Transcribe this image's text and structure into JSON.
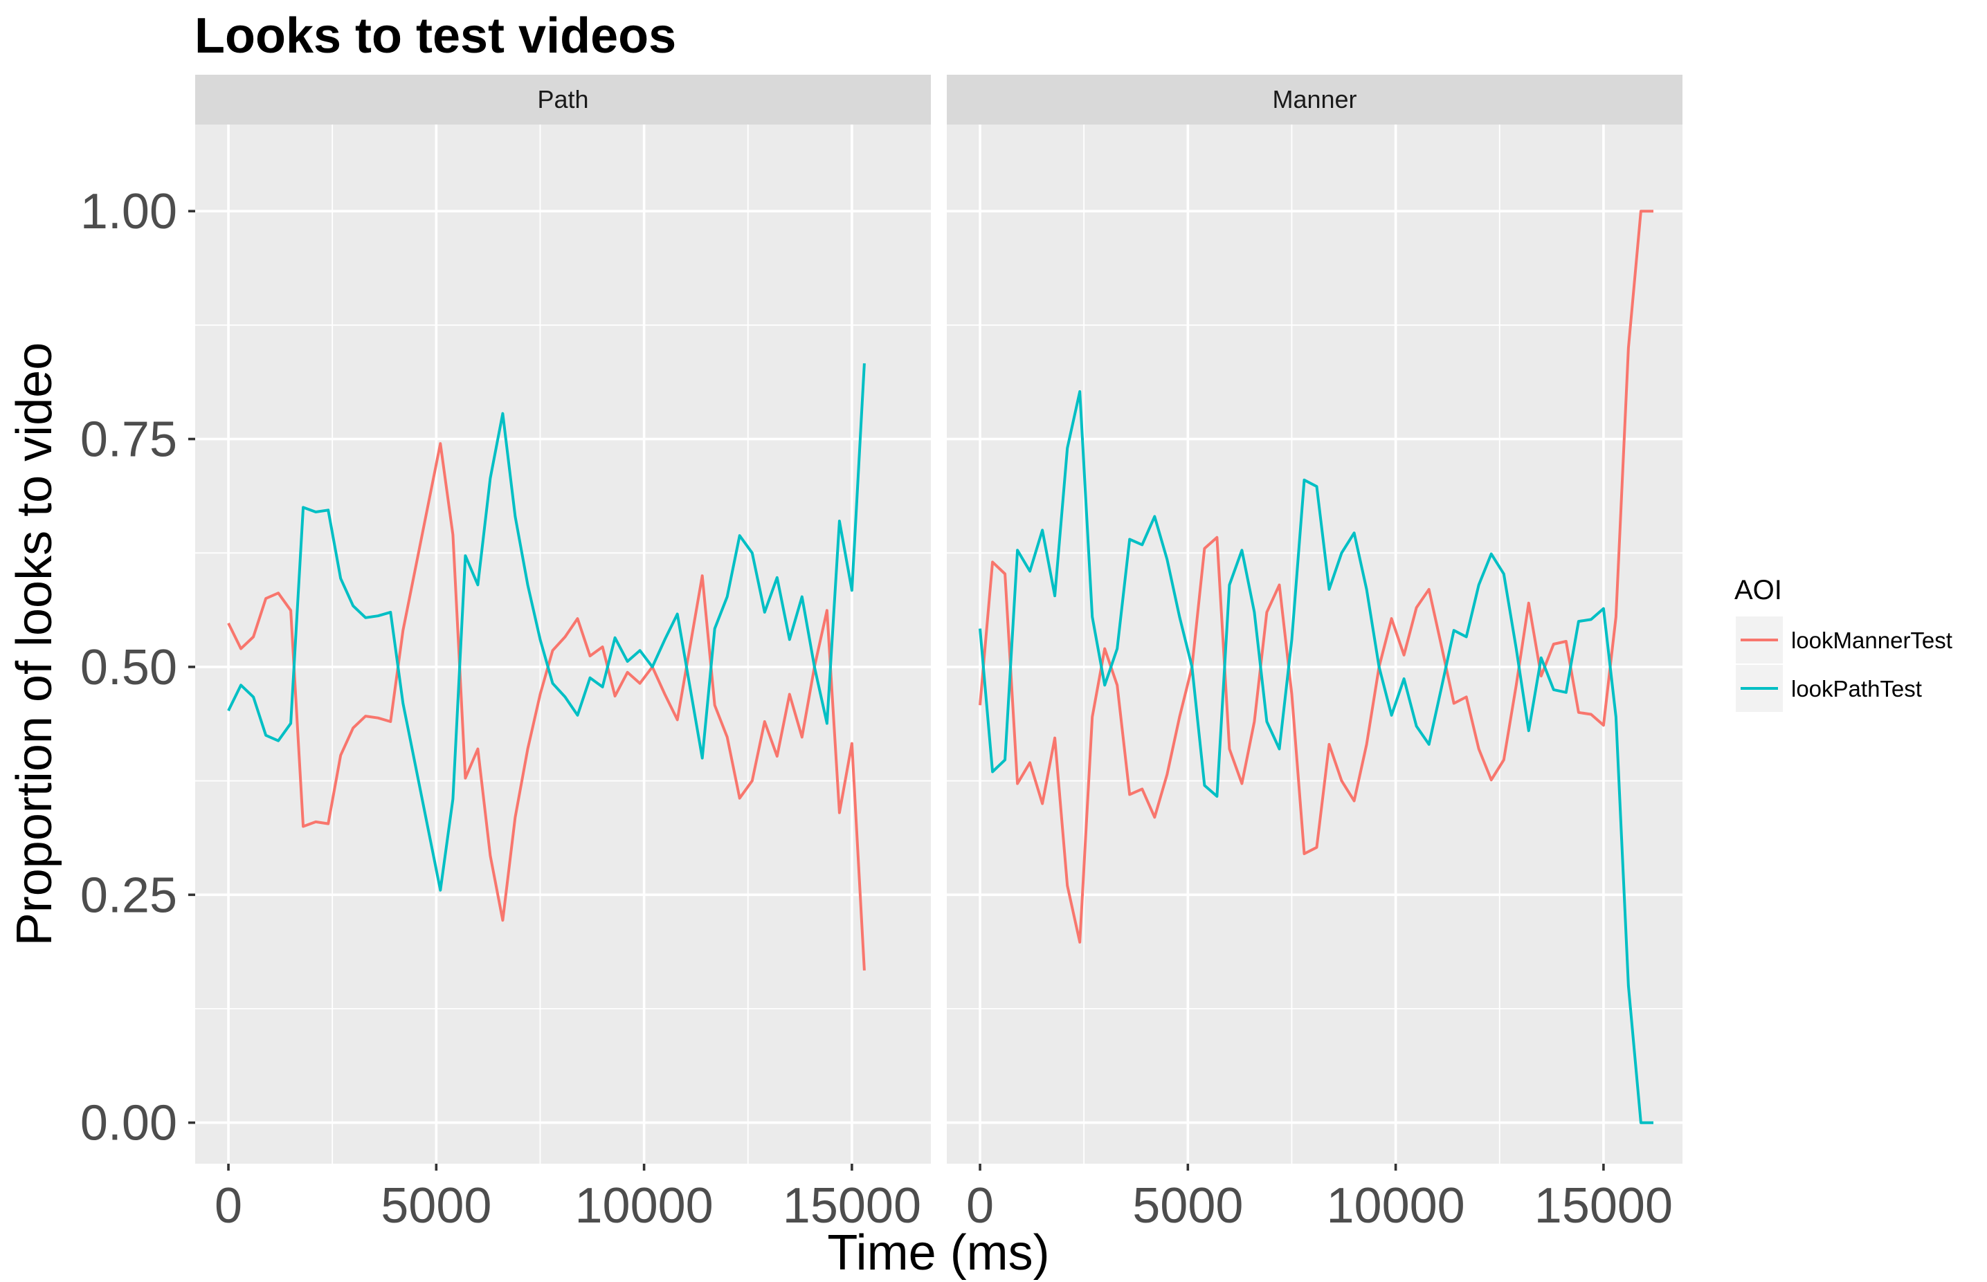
{
  "chart_data": {
    "type": "line",
    "title": "Looks to test videos",
    "xlabel": "Time (ms)",
    "ylabel": "Proportion of looks to video",
    "xlim": [
      -800,
      16900
    ],
    "ylim": [
      -0.045,
      1.095
    ],
    "x_ticks": [
      0,
      5000,
      10000,
      15000
    ],
    "x_tick_labels": [
      "0",
      "5000",
      "10000",
      "15000"
    ],
    "y_ticks": [
      0,
      0.25,
      0.5,
      0.75,
      1.0
    ],
    "y_tick_labels": [
      "0.00",
      "0.25",
      "0.50",
      "0.75",
      "1.00"
    ],
    "grid": true,
    "legend": {
      "title": "AOI",
      "position": "right",
      "entries": [
        {
          "name": "lookMannerTest",
          "color": "#F8766D"
        },
        {
          "name": "lookPathTest",
          "color": "#00BFC4"
        }
      ]
    },
    "panels": [
      {
        "strip": "Path",
        "series": [
          {
            "name": "lookMannerTest",
            "color": "#F8766D",
            "x": [
              0,
              300,
              600,
              900,
              1200,
              1500,
              1800,
              2100,
              2400,
              2700,
              3000,
              3300,
              3600,
              3900,
              4200,
              5100,
              5400,
              5700,
              6000,
              6300,
              6600,
              6900,
              7200,
              7500,
              7800,
              8100,
              8400,
              8700,
              9000,
              9300,
              9600,
              9900,
              10200,
              10500,
              10800,
              11400,
              11700,
              12000,
              12300,
              12600,
              12900,
              13200,
              13500,
              13800,
              14100,
              14400,
              14700,
              15000,
              15300
            ],
            "y": [
              0.548,
              0.52,
              0.533,
              0.575,
              0.581,
              0.562,
              0.325,
              0.33,
              0.328,
              0.403,
              0.433,
              0.446,
              0.444,
              0.44,
              0.54,
              0.745,
              0.645,
              0.378,
              0.41,
              0.293,
              0.222,
              0.335,
              0.41,
              0.47,
              0.518,
              0.533,
              0.553,
              0.512,
              0.522,
              0.468,
              0.494,
              0.482,
              0.5,
              0.47,
              0.442,
              0.6,
              0.458,
              0.423,
              0.356,
              0.375,
              0.44,
              0.402,
              0.47,
              0.423,
              0.5,
              0.562,
              0.34,
              0.416,
              0.167
            ]
          },
          {
            "name": "lookPathTest",
            "color": "#00BFC4",
            "x": [
              0,
              300,
              600,
              900,
              1200,
              1500,
              1800,
              2100,
              2400,
              2700,
              3000,
              3300,
              3600,
              3900,
              4200,
              5100,
              5400,
              5700,
              6000,
              6300,
              6600,
              6900,
              7200,
              7500,
              7800,
              8100,
              8400,
              8700,
              9000,
              9300,
              9600,
              9900,
              10200,
              10500,
              10800,
              11400,
              11700,
              12000,
              12300,
              12600,
              12900,
              13200,
              13500,
              13800,
              14100,
              14400,
              14700,
              15000,
              15300
            ],
            "y": [
              0.452,
              0.48,
              0.467,
              0.425,
              0.419,
              0.438,
              0.675,
              0.67,
              0.672,
              0.597,
              0.567,
              0.554,
              0.556,
              0.56,
              0.46,
              0.255,
              0.355,
              0.622,
              0.59,
              0.707,
              0.778,
              0.665,
              0.59,
              0.53,
              0.482,
              0.467,
              0.447,
              0.488,
              0.478,
              0.532,
              0.506,
              0.518,
              0.5,
              0.53,
              0.558,
              0.4,
              0.542,
              0.577,
              0.644,
              0.625,
              0.56,
              0.598,
              0.53,
              0.577,
              0.5,
              0.438,
              0.66,
              0.584,
              0.833
            ]
          }
        ]
      },
      {
        "strip": "Manner",
        "series": [
          {
            "name": "lookMannerTest",
            "color": "#F8766D",
            "x": [
              0,
              300,
              600,
              900,
              1200,
              1500,
              1800,
              2100,
              2400,
              2700,
              3000,
              3300,
              3600,
              3900,
              4200,
              4500,
              4800,
              5100,
              5400,
              5700,
              6000,
              6300,
              6600,
              6900,
              7200,
              7500,
              7800,
              8100,
              8400,
              8700,
              9000,
              9300,
              9600,
              9900,
              10200,
              10500,
              10800,
              11100,
              11400,
              11700,
              12000,
              12300,
              12600,
              12900,
              13200,
              13500,
              13800,
              14100,
              14400,
              14700,
              15000,
              15300,
              15600,
              15900,
              16200
            ],
            "y": [
              0.458,
              0.615,
              0.602,
              0.372,
              0.395,
              0.35,
              0.422,
              0.26,
              0.198,
              0.445,
              0.52,
              0.48,
              0.36,
              0.366,
              0.335,
              0.382,
              0.445,
              0.5,
              0.63,
              0.642,
              0.41,
              0.372,
              0.44,
              0.56,
              0.59,
              0.47,
              0.295,
              0.302,
              0.415,
              0.375,
              0.353,
              0.415,
              0.5,
              0.553,
              0.513,
              0.565,
              0.585,
              0.523,
              0.46,
              0.467,
              0.41,
              0.376,
              0.398,
              0.48,
              0.57,
              0.49,
              0.525,
              0.528,
              0.45,
              0.448,
              0.436,
              0.555,
              0.85,
              1.0,
              1.0
            ]
          },
          {
            "name": "lookPathTest",
            "color": "#00BFC4",
            "x": [
              0,
              300,
              600,
              900,
              1200,
              1500,
              1800,
              2100,
              2400,
              2700,
              3000,
              3300,
              3600,
              3900,
              4200,
              4500,
              4800,
              5100,
              5400,
              5700,
              6000,
              6300,
              6600,
              6900,
              7200,
              7500,
              7800,
              8100,
              8400,
              8700,
              9000,
              9300,
              9600,
              9900,
              10200,
              10500,
              10800,
              11100,
              11400,
              11700,
              12000,
              12300,
              12600,
              12900,
              13200,
              13500,
              13800,
              14100,
              14400,
              14700,
              15000,
              15300,
              15600,
              15900,
              16200
            ],
            "y": [
              0.542,
              0.385,
              0.398,
              0.628,
              0.605,
              0.65,
              0.578,
              0.74,
              0.802,
              0.555,
              0.48,
              0.52,
              0.64,
              0.634,
              0.665,
              0.618,
              0.555,
              0.5,
              0.37,
              0.358,
              0.59,
              0.628,
              0.56,
              0.44,
              0.41,
              0.53,
              0.705,
              0.698,
              0.585,
              0.625,
              0.647,
              0.585,
              0.5,
              0.447,
              0.487,
              0.435,
              0.415,
              0.477,
              0.54,
              0.533,
              0.59,
              0.624,
              0.602,
              0.52,
              0.43,
              0.51,
              0.475,
              0.472,
              0.55,
              0.552,
              0.564,
              0.445,
              0.15,
              0.0,
              0.0
            ]
          }
        ]
      }
    ]
  }
}
